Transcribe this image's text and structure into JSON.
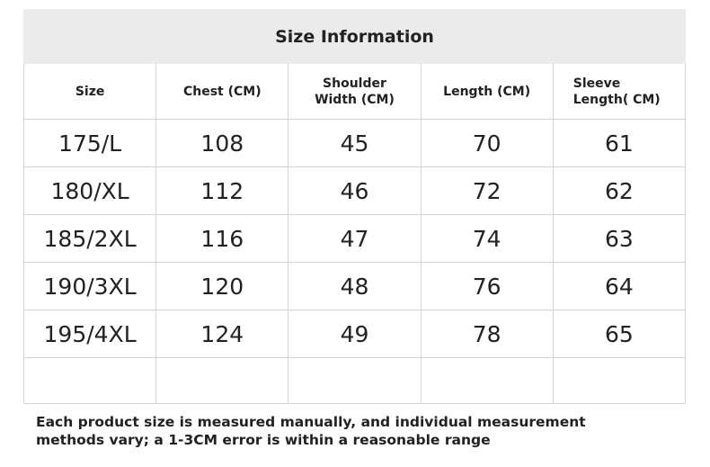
{
  "header": {
    "title": "Size Information"
  },
  "table": {
    "columns": [
      "Size",
      "Chest (CM)",
      "Shoulder Width (CM)",
      "Length (CM)",
      "Sleeve Length( CM)"
    ],
    "rows": [
      [
        "175/L",
        108,
        45,
        70,
        61
      ],
      [
        "180/XL",
        112,
        46,
        72,
        62
      ],
      [
        "185/2XL",
        116,
        47,
        74,
        63
      ],
      [
        "190/3XL",
        120,
        48,
        76,
        64
      ],
      [
        "195/4XL",
        124,
        49,
        78,
        65
      ]
    ]
  },
  "footer": {
    "note": "Each product size is measured manually, and individual measurement methods vary; a 1-3CM error is within a reasonable range"
  }
}
